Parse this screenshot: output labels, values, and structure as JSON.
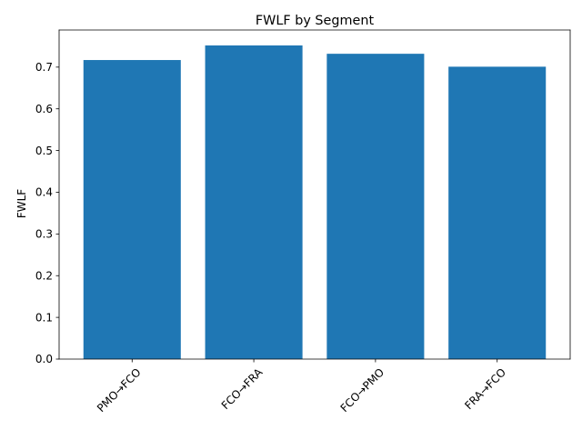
{
  "chart_data": {
    "type": "bar",
    "title": "FWLF by Segment",
    "xlabel": "",
    "ylabel": "FWLF",
    "categories": [
      "PMO→FCO",
      "FCO→FRA",
      "FCO→PMO",
      "FRA→FCO"
    ],
    "values": [
      0.717,
      0.752,
      0.732,
      0.701
    ],
    "ylim": [
      0,
      0.789
    ],
    "yticks": [
      0.0,
      0.1,
      0.2,
      0.3,
      0.4,
      0.5,
      0.6,
      0.7
    ],
    "ytick_labels": [
      "0.0",
      "0.1",
      "0.2",
      "0.3",
      "0.4",
      "0.5",
      "0.6",
      "0.7"
    ],
    "grid": false,
    "legend": "none",
    "bar_color": "#1f77b4",
    "xtick_rotation": 45
  }
}
